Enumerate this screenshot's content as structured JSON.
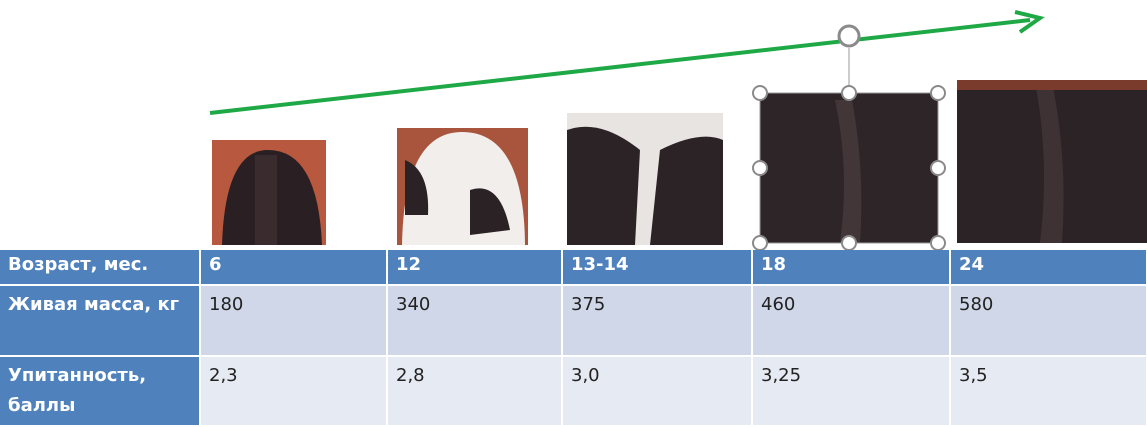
{
  "table": {
    "rows": [
      [
        "Возраст, мес.",
        "6",
        "12",
        "13-14",
        "18",
        "24"
      ],
      [
        "Живая масса, кг",
        "180",
        "340",
        "375",
        "460",
        "580"
      ],
      [
        "Упитанность, баллы",
        "2,3",
        "2,8",
        "3,0",
        "3,25",
        "3,5"
      ]
    ]
  }
}
